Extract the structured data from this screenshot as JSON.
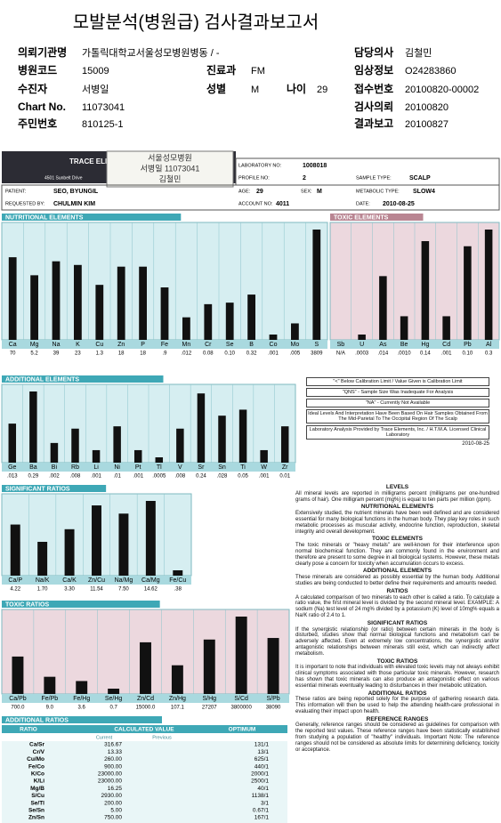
{
  "header": {
    "title": "모발분석(병원급) 검사결과보고서",
    "fields": [
      {
        "label": "의뢰기관명",
        "value": "가톨릭대학교서울성모병원병동   / -"
      },
      {
        "label": "담당의사",
        "value": "김철민"
      },
      {
        "label": "병원코드",
        "value": "15009"
      },
      {
        "label": "진료과",
        "value": "FM"
      },
      {
        "label": "임상정보",
        "value": "O24283860"
      },
      {
        "label": "수진자",
        "value": "서병일"
      },
      {
        "label": "성별",
        "value": "M"
      },
      {
        "label": "나이",
        "value": "29"
      },
      {
        "label": "접수번호",
        "value": "20100820-00002"
      },
      {
        "label": "Chart No.",
        "value": "11073041"
      },
      {
        "label": "검사의뢰",
        "value": "20100820"
      },
      {
        "label": "주민번호",
        "value": "810125-1"
      },
      {
        "label": "결과보고",
        "value": "20100827"
      }
    ]
  },
  "report": {
    "logo": "TRACE ELEMENTS",
    "address": "4501 Sunbelt Drive",
    "stamp": [
      "서울성모병원",
      "서병일 11073041",
      "김철민"
    ],
    "info": [
      {
        "label": "LABORATORY NO:",
        "value": "1008018"
      },
      {
        "label": "PROFILE NO:",
        "value": "2"
      },
      {
        "label": "SAMPLE TYPE:",
        "value": "SCALP"
      },
      {
        "label": "PATIENT:",
        "value": "SEO, BYUNGIL"
      },
      {
        "label": "AGE:",
        "value": "29"
      },
      {
        "label": "SEX:",
        "value": "M"
      },
      {
        "label": "METABOLIC TYPE:",
        "value": "SLOW4"
      },
      {
        "label": "REQUESTED BY:",
        "value": "CHULMIN KIM"
      },
      {
        "label": "ACCOUNT NO:",
        "value": "4011"
      },
      {
        "label": "DATE:",
        "value": "2010-08-25"
      }
    ]
  },
  "chart_data": [
    {
      "type": "bar",
      "title": "NUTRITIONAL ELEMENTS",
      "color": "#111111",
      "background": "#d6eef1",
      "header_color": "#3ea8b6",
      "categories": [
        "Ca",
        "Mg",
        "Na",
        "K",
        "Cu",
        "Zn",
        "P",
        "Fe",
        "Mn",
        "Cr",
        "Se",
        "B",
        "Co",
        "Mo",
        "S"
      ],
      "values": [
        70,
        5.2,
        39,
        23,
        1.3,
        18,
        18,
        0.9,
        0.012,
        0.08,
        0.1,
        0.32,
        0.001,
        0.005,
        3809
      ],
      "value_labels": [
        "70",
        "5.2",
        "39",
        "23",
        "1.3",
        "18",
        "18",
        ".9",
        ".012",
        "0.08",
        "0.10",
        "0.32",
        ".001",
        ".005",
        "3809"
      ]
    },
    {
      "type": "bar",
      "title": "TOXIC ELEMENTS",
      "color": "#111111",
      "background": "#ecd8de",
      "header_color": "#b98592",
      "categories": [
        "Sb",
        "U",
        "As",
        "Be",
        "Hg",
        "Cd",
        "Pb",
        "Al"
      ],
      "values": [
        null,
        0.0003,
        0.014,
        0.001,
        0.14,
        0.001,
        0.1,
        0.3
      ],
      "value_labels": [
        "N/A",
        ".0003",
        ".014",
        ".0010",
        "0.14",
        ".001",
        "0.10",
        "0.3"
      ]
    },
    {
      "type": "bar",
      "title": "ADDITIONAL ELEMENTS",
      "color": "#111111",
      "background": "#d6eef1",
      "header_color": "#3ea8b6",
      "categories": [
        "Ge",
        "Ba",
        "Bi",
        "Rb",
        "Li",
        "Ni",
        "Pt",
        "Tl",
        "V",
        "Sr",
        "Sn",
        "Ti",
        "W",
        "Zr"
      ],
      "values": [
        0.013,
        0.29,
        0.002,
        0.008,
        0.001,
        0.01,
        0.001,
        0.0005,
        0.008,
        0.24,
        0.028,
        0.05,
        0.001,
        0.01
      ],
      "value_labels": [
        ".013",
        "0.29",
        ".002",
        ".008",
        ".001",
        ".01",
        ".001",
        ".0005",
        ".008",
        "0.24",
        ".028",
        "0.05",
        ".001",
        "0.01"
      ]
    },
    {
      "type": "bar",
      "title": "SIGNIFICANT RATIOS",
      "color": "#111111",
      "background": "#d6eef1",
      "header_color": "#3ea8b6",
      "categories": [
        "Ca/P",
        "Na/K",
        "Ca/K",
        "Zn/Cu",
        "Na/Mg",
        "Ca/Mg",
        "Fe/Cu"
      ],
      "values": [
        4.22,
        1.7,
        3.3,
        11.54,
        7.5,
        14.62,
        0.38
      ],
      "value_labels": [
        "4.22",
        "1.70",
        "3.30",
        "11.54",
        "7.50",
        "14.62",
        ".38"
      ]
    },
    {
      "type": "bar",
      "title": "TOXIC RATIOS",
      "color": "#111111",
      "background": "#ecd8de",
      "header_color": "#3ea8b6",
      "categories": [
        "Ca/Pb",
        "Fe/Pb",
        "Fe/Hg",
        "Se/Hg",
        "Zn/Cd",
        "Zn/Hg",
        "S/Hg",
        "S/Cd",
        "S/Pb"
      ],
      "values": [
        700,
        9,
        3.6,
        0.7,
        15000,
        107.1,
        27207,
        3800000,
        38090
      ],
      "value_labels": [
        "700.0",
        "9.0",
        "3.6",
        "0.7",
        "15000.0",
        "107.1",
        "27207",
        "3800000",
        "38090"
      ]
    }
  ],
  "additional_ratios": {
    "title": "ADDITIONAL RATIOS",
    "headers": [
      "RATIO",
      "CALCULATED VALUE",
      "OPTIMUM"
    ],
    "subheaders": [
      "Current",
      "Previous"
    ],
    "rows": [
      [
        "Ca/Sr",
        "316.67",
        "131/1"
      ],
      [
        "Cr/V",
        "13.33",
        "13/1"
      ],
      [
        "Cu/Mo",
        "260.00",
        "625/1"
      ],
      [
        "Fe/Co",
        "900.00",
        "440/1"
      ],
      [
        "K/Co",
        "23000.00",
        "2000/1"
      ],
      [
        "K/Li",
        "23000.00",
        "2500/1"
      ],
      [
        "Mg/B",
        "16.25",
        "40/1"
      ],
      [
        "S/Cu",
        "2930.00",
        "1138/1"
      ],
      [
        "Se/Tl",
        "200.00",
        "3/1"
      ],
      [
        "Se/Sn",
        "5.00",
        "0.67/1"
      ],
      [
        "Zn/Sn",
        "750.00",
        "167/1"
      ]
    ]
  },
  "legend_box": {
    "notes": [
      "\"<\" Below Calibration Limit / Value Given is Calibration Limit",
      "\"QNS\" - Sample Size Was Inadequate For Analysis",
      "\"NA\" - Currently Not Available"
    ],
    "ideal": "Ideal Levels And Interpretation Have Been Based On Hair Samples Obtained From The Mid-Parietal To The Occipital Region Of The Scalp",
    "lab": "Laboratory Analysis Provided by Trace Elements, Inc. / H.T.M.A. Licensed Clinical Laboratory",
    "date": "2010-08-25"
  },
  "explanations": [
    {
      "heading": "LEVELS",
      "text": "All mineral levels are reported in milligrams percent (milligrams per one-hundred grams of hair). One milligram percent (mg%) is equal to ten parts per million (ppm)."
    },
    {
      "heading": "NUTRITIONAL ELEMENTS",
      "text": "Extensively studied, the nutrient minerals have been well defined and are considered essential for many biological functions in the human body. They play key roles in such metabolic processes as muscular activity, endocrine function, reproduction, skeletal integrity and overall development."
    },
    {
      "heading": "TOXIC ELEMENTS",
      "text": "The toxic minerals or \"heavy metals\" are well-known for their interference upon normal biochemical function. They are commonly found in the environment and therefore are present to some degree in all biological systems. However, these metals clearly pose a concern for toxicity when accumulation occurs to excess."
    },
    {
      "heading": "ADDITIONAL ELEMENTS",
      "text": "These minerals are considered as possibly essential by the human body. Additional studies are being conducted to better define their requirements and amounts needed."
    },
    {
      "heading": "RATIOS",
      "text": "A calculated comparison of two minerals to each other is called a ratio. To calculate a ratio value, the first mineral level is divided by the second mineral level. EXAMPLE: A sodium (Na) test level of 24 mg% divided by a potassium (K) level of 10mg% equals a Na/K ratio of 2.4 to 1."
    },
    {
      "heading": "SIGNIFICANT RATIOS",
      "text": "If the synergistic relationship (or ratio) between certain minerals in the body is disturbed, studies show that normal biological functions and metabolism can be adversely affected. Even at extremely low concentrations, the synergistic and/or antagonistic relationships between minerals still exist, which can indirectly affect metabolism."
    },
    {
      "heading": "TOXIC RATIOS",
      "text": "It is important to note that individuals with elevated toxic levels may not always exhibit clinical symptoms associated with those particular toxic minerals. However, research has shown that toxic minerals can also produce an antagonistic effect on various essential minerals eventually leading to disturbances in their metabolic utilization."
    },
    {
      "heading": "ADDITIONAL RATIOS",
      "text": "These ratios are being reported solely for the purpose of gathering research data. This information will then be used to help the attending health-care professional in evaluating their impact upon health."
    },
    {
      "heading": "REFERENCE RANGES",
      "text": "Generally, reference ranges should be considered as guidelines for comparison with the reported test values. These reference ranges have been statistically established from studying a population of \"healthy\" individuals. Important Note: The reference ranges should not be considered as absolute limits for determining deficiency, toxicity or acceptance."
    }
  ]
}
